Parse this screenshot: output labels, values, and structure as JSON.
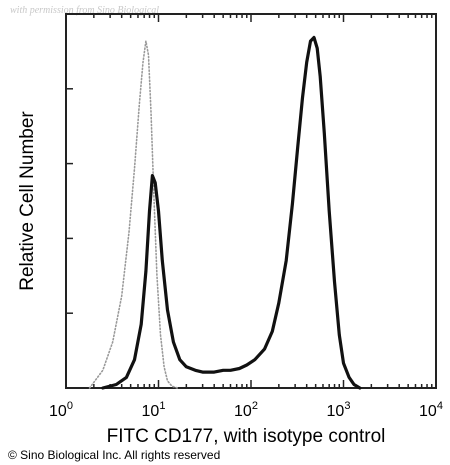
{
  "watermark": "with permission from Sino Biological",
  "copyright": "© Sino Biological Inc. All rights reserved",
  "chart_data": {
    "type": "line",
    "xlabel": "FITC CD177, with isotype control",
    "ylabel": "Relative Cell Number",
    "x_scale": "log",
    "xlim": [
      1,
      10000
    ],
    "ylim": [
      0,
      1
    ],
    "x_ticks": [
      {
        "base": "10",
        "exp": "0"
      },
      {
        "base": "10",
        "exp": "1"
      },
      {
        "base": "10",
        "exp": "2"
      },
      {
        "base": "10",
        "exp": "3"
      },
      {
        "base": "10",
        "exp": "4"
      }
    ],
    "legend": "none",
    "grid": false,
    "series": [
      {
        "role": "isotype-control",
        "style": "dotted",
        "color": "#9a9a9a",
        "x": [
          1.8,
          2.5,
          3.2,
          4.0,
          4.8,
          5.5,
          6.2,
          6.8,
          7.3,
          7.8,
          8.3,
          8.9,
          9.6,
          10.5,
          11.5,
          12.5,
          14.0,
          16.0
        ],
        "y": [
          0.0,
          0.05,
          0.13,
          0.26,
          0.44,
          0.62,
          0.8,
          0.92,
          0.98,
          0.94,
          0.78,
          0.55,
          0.32,
          0.15,
          0.06,
          0.02,
          0.005,
          0.0
        ]
      },
      {
        "role": "CD177",
        "style": "solid",
        "color": "#111111",
        "x": [
          2.5,
          3.5,
          4.5,
          5.5,
          6.5,
          7.3,
          8.0,
          8.6,
          9.2,
          10.0,
          11.0,
          12.5,
          14.5,
          17.0,
          20,
          25,
          30,
          40,
          50,
          60,
          75,
          90,
          110,
          140,
          170,
          200,
          240,
          280,
          320,
          360,
          400,
          440,
          480,
          520,
          560,
          620,
          700,
          800,
          900,
          1000,
          1150,
          1300,
          1500
        ],
        "y": [
          0.0,
          0.01,
          0.03,
          0.08,
          0.18,
          0.33,
          0.5,
          0.6,
          0.58,
          0.5,
          0.36,
          0.22,
          0.13,
          0.08,
          0.06,
          0.05,
          0.045,
          0.045,
          0.05,
          0.05,
          0.055,
          0.065,
          0.08,
          0.11,
          0.16,
          0.24,
          0.36,
          0.52,
          0.68,
          0.82,
          0.92,
          0.98,
          0.99,
          0.96,
          0.88,
          0.72,
          0.5,
          0.3,
          0.15,
          0.07,
          0.03,
          0.01,
          0.0
        ]
      }
    ]
  }
}
